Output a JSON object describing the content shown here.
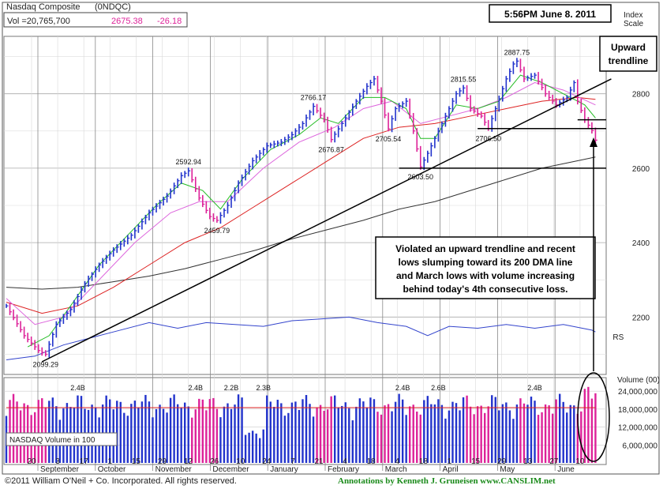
{
  "header": {
    "index_name": "Nasdaq Composite",
    "symbol": "(0NDQC)",
    "volume_label": "Vol =20,765,700",
    "price": "2675.38",
    "change": "-26.18",
    "timestamp": "5:56PM June 8. 2011",
    "index_scale_line1": "Index",
    "index_scale_line2": "Scale"
  },
  "colors": {
    "up_bar": "#2233cc",
    "down_bar": "#dd2299",
    "ma_green": "#22bb22",
    "ma_magenta": "#dd66dd",
    "ma_red": "#dd2222",
    "ma_black": "#333333",
    "rs_line": "#3344cc",
    "accent_price": "#dd2299"
  },
  "chart_data": [
    {
      "type": "line",
      "title": "Nasdaq Composite",
      "ylim": [
        2050,
        2950
      ],
      "ytick_labels": [
        "2200",
        "2400",
        "2600",
        "2800"
      ],
      "ytick_values": [
        2200,
        2400,
        2600,
        2800
      ],
      "xtick_labels": [
        "20",
        "3",
        "17",
        "1",
        "15",
        "29",
        "12",
        "26",
        "10",
        "24",
        "7",
        "21",
        "4",
        "18",
        "4",
        "18",
        "1",
        "15",
        "29",
        "13",
        "27",
        "10"
      ],
      "month_labels": [
        "September",
        "October",
        "November",
        "December",
        "January",
        "February",
        "March",
        "April",
        "May",
        "June"
      ],
      "price_path": [
        [
          0,
          2230
        ],
        [
          5,
          2150
        ],
        [
          9,
          2110
        ],
        [
          11,
          2100
        ],
        [
          14,
          2180
        ],
        [
          18,
          2220
        ],
        [
          22,
          2290
        ],
        [
          26,
          2340
        ],
        [
          30,
          2380
        ],
        [
          35,
          2420
        ],
        [
          40,
          2480
        ],
        [
          45,
          2525
        ],
        [
          49,
          2580
        ],
        [
          51,
          2592.94
        ],
        [
          54,
          2520
        ],
        [
          57,
          2470
        ],
        [
          59,
          2459.79
        ],
        [
          62,
          2500
        ],
        [
          65,
          2560
        ],
        [
          69,
          2620
        ],
        [
          73,
          2660
        ],
        [
          77,
          2670
        ],
        [
          80,
          2690
        ],
        [
          83,
          2720
        ],
        [
          86,
          2766.17
        ],
        [
          89,
          2730
        ],
        [
          91,
          2676.87
        ],
        [
          94,
          2720
        ],
        [
          98,
          2780
        ],
        [
          101,
          2820
        ],
        [
          103,
          2840
        ],
        [
          105,
          2780
        ],
        [
          107,
          2705.54
        ],
        [
          109,
          2760
        ],
        [
          112,
          2780
        ],
        [
          114,
          2700
        ],
        [
          116,
          2603.5
        ],
        [
          118,
          2640
        ],
        [
          121,
          2700
        ],
        [
          124,
          2760
        ],
        [
          126,
          2800
        ],
        [
          128,
          2815.55
        ],
        [
          130,
          2760
        ],
        [
          133,
          2740
        ],
        [
          135,
          2706.5
        ],
        [
          137,
          2760
        ],
        [
          140,
          2840
        ],
        [
          142,
          2880
        ],
        [
          143,
          2887.75
        ],
        [
          145,
          2840
        ],
        [
          148,
          2850
        ],
        [
          151,
          2800
        ],
        [
          154,
          2770
        ],
        [
          157,
          2790
        ],
        [
          159,
          2830
        ],
        [
          160,
          2780
        ],
        [
          162,
          2730
        ],
        [
          164,
          2701
        ],
        [
          165,
          2675.38
        ]
      ],
      "sma_green": [
        [
          6,
          2120
        ],
        [
          12,
          2150
        ],
        [
          18,
          2230
        ],
        [
          26,
          2340
        ],
        [
          34,
          2420
        ],
        [
          42,
          2500
        ],
        [
          49,
          2560
        ],
        [
          55,
          2540
        ],
        [
          60,
          2490
        ],
        [
          66,
          2570
        ],
        [
          74,
          2650
        ],
        [
          82,
          2690
        ],
        [
          88,
          2735
        ],
        [
          93,
          2720
        ],
        [
          100,
          2790
        ],
        [
          106,
          2790
        ],
        [
          112,
          2760
        ],
        [
          116,
          2680
        ],
        [
          120,
          2680
        ],
        [
          126,
          2770
        ],
        [
          132,
          2760
        ],
        [
          138,
          2780
        ],
        [
          144,
          2850
        ],
        [
          150,
          2830
        ],
        [
          156,
          2800
        ],
        [
          162,
          2770
        ],
        [
          165,
          2735
        ]
      ],
      "sma_magenta": [
        [
          0,
          2250
        ],
        [
          8,
          2180
        ],
        [
          16,
          2200
        ],
        [
          26,
          2300
        ],
        [
          36,
          2400
        ],
        [
          46,
          2480
        ],
        [
          54,
          2510
        ],
        [
          62,
          2510
        ],
        [
          72,
          2600
        ],
        [
          82,
          2670
        ],
        [
          92,
          2710
        ],
        [
          100,
          2760
        ],
        [
          108,
          2780
        ],
        [
          116,
          2720
        ],
        [
          124,
          2740
        ],
        [
          132,
          2760
        ],
        [
          140,
          2790
        ],
        [
          148,
          2830
        ],
        [
          156,
          2810
        ],
        [
          165,
          2770
        ]
      ],
      "sma_red": [
        [
          0,
          2240
        ],
        [
          10,
          2210
        ],
        [
          20,
          2230
        ],
        [
          30,
          2280
        ],
        [
          40,
          2340
        ],
        [
          50,
          2400
        ],
        [
          60,
          2440
        ],
        [
          70,
          2500
        ],
        [
          80,
          2560
        ],
        [
          90,
          2620
        ],
        [
          100,
          2680
        ],
        [
          110,
          2710
        ],
        [
          120,
          2720
        ],
        [
          130,
          2740
        ],
        [
          140,
          2760
        ],
        [
          150,
          2780
        ],
        [
          160,
          2790
        ],
        [
          165,
          2785
        ]
      ],
      "sma_black": [
        [
          0,
          2280
        ],
        [
          10,
          2275
        ],
        [
          20,
          2280
        ],
        [
          30,
          2295
        ],
        [
          40,
          2310
        ],
        [
          50,
          2330
        ],
        [
          60,
          2355
        ],
        [
          70,
          2380
        ],
        [
          80,
          2410
        ],
        [
          90,
          2435
        ],
        [
          100,
          2460
        ],
        [
          110,
          2490
        ],
        [
          120,
          2510
        ],
        [
          130,
          2540
        ],
        [
          140,
          2570
        ],
        [
          150,
          2600
        ],
        [
          160,
          2620
        ],
        [
          165,
          2630
        ]
      ],
      "rs_line": [
        [
          0,
          2085
        ],
        [
          8,
          2095
        ],
        [
          16,
          2125
        ],
        [
          24,
          2145
        ],
        [
          32,
          2165
        ],
        [
          40,
          2185
        ],
        [
          48,
          2170
        ],
        [
          56,
          2185
        ],
        [
          64,
          2180
        ],
        [
          72,
          2175
        ],
        [
          80,
          2190
        ],
        [
          88,
          2195
        ],
        [
          96,
          2200
        ],
        [
          104,
          2185
        ],
        [
          112,
          2175
        ],
        [
          118,
          2150
        ],
        [
          124,
          2175
        ],
        [
          132,
          2170
        ],
        [
          140,
          2180
        ],
        [
          148,
          2170
        ],
        [
          156,
          2180
        ],
        [
          164,
          2165
        ],
        [
          165,
          2160
        ]
      ],
      "rs_label": "RS",
      "trendline": [
        [
          10,
          2080
        ],
        [
          165,
          2810
        ]
      ],
      "support_lines": [
        {
          "value": 2600,
          "x_start": 110,
          "x_end": 168
        },
        {
          "value": 2706.5,
          "x_start": 132,
          "x_end": 168
        },
        {
          "value": 2730,
          "x_start": 160,
          "x_end": 168
        }
      ],
      "annotations": [
        {
          "text": "2099.29",
          "x": 11,
          "y": 2100
        },
        {
          "text": "2592.94",
          "x": 51,
          "y": 2592.94
        },
        {
          "text": "2459.79",
          "x": 59,
          "y": 2459.79
        },
        {
          "text": "2766.17",
          "x": 86,
          "y": 2766.17
        },
        {
          "text": "2676.87",
          "x": 91,
          "y": 2676.87
        },
        {
          "text": "2705.54",
          "x": 107,
          "y": 2705.54
        },
        {
          "text": "2603.50",
          "x": 116,
          "y": 2603.5
        },
        {
          "text": "2815.55",
          "x": 128,
          "y": 2815.55
        },
        {
          "text": "2706.50",
          "x": 135,
          "y": 2706.5
        },
        {
          "text": "2887.75",
          "x": 143,
          "y": 2887.75
        }
      ],
      "callout_trendline": [
        "Upward",
        "trendline"
      ],
      "callout_note": [
        "Violated an upward trendline and recent",
        "lows slumping toward its 200 DMA line",
        "and March lows with volume increasing",
        "behind today's 4th consecutive loss."
      ]
    },
    {
      "type": "bar",
      "title": "Volume (00)",
      "legend": "NASDAQ Volume in 100",
      "ylim": [
        0,
        28000000
      ],
      "ytick_labels": [
        "6,000,000",
        "12,000,000",
        "18,000,000",
        "24,000,000"
      ],
      "ytick_values": [
        6000000,
        12000000,
        18000000,
        24000000
      ],
      "average_volume": 18500000,
      "peak_labels": [
        {
          "text": "2.4B",
          "x": 20
        },
        {
          "text": "2.4B",
          "x": 53
        },
        {
          "text": "2.2B",
          "x": 63
        },
        {
          "text": "2.3B",
          "x": 72
        },
        {
          "text": "2.4B",
          "x": 111
        },
        {
          "text": "2.6B",
          "x": 121
        },
        {
          "text": "2.4B",
          "x": 148
        }
      ]
    }
  ],
  "footer": {
    "copyright": "©2011 William O'Neil + Co. Incorporated. All rights reserved.",
    "annotations_credit": "Annotations by Kenneth J. Gruneisen  www.CANSLIM.net"
  }
}
